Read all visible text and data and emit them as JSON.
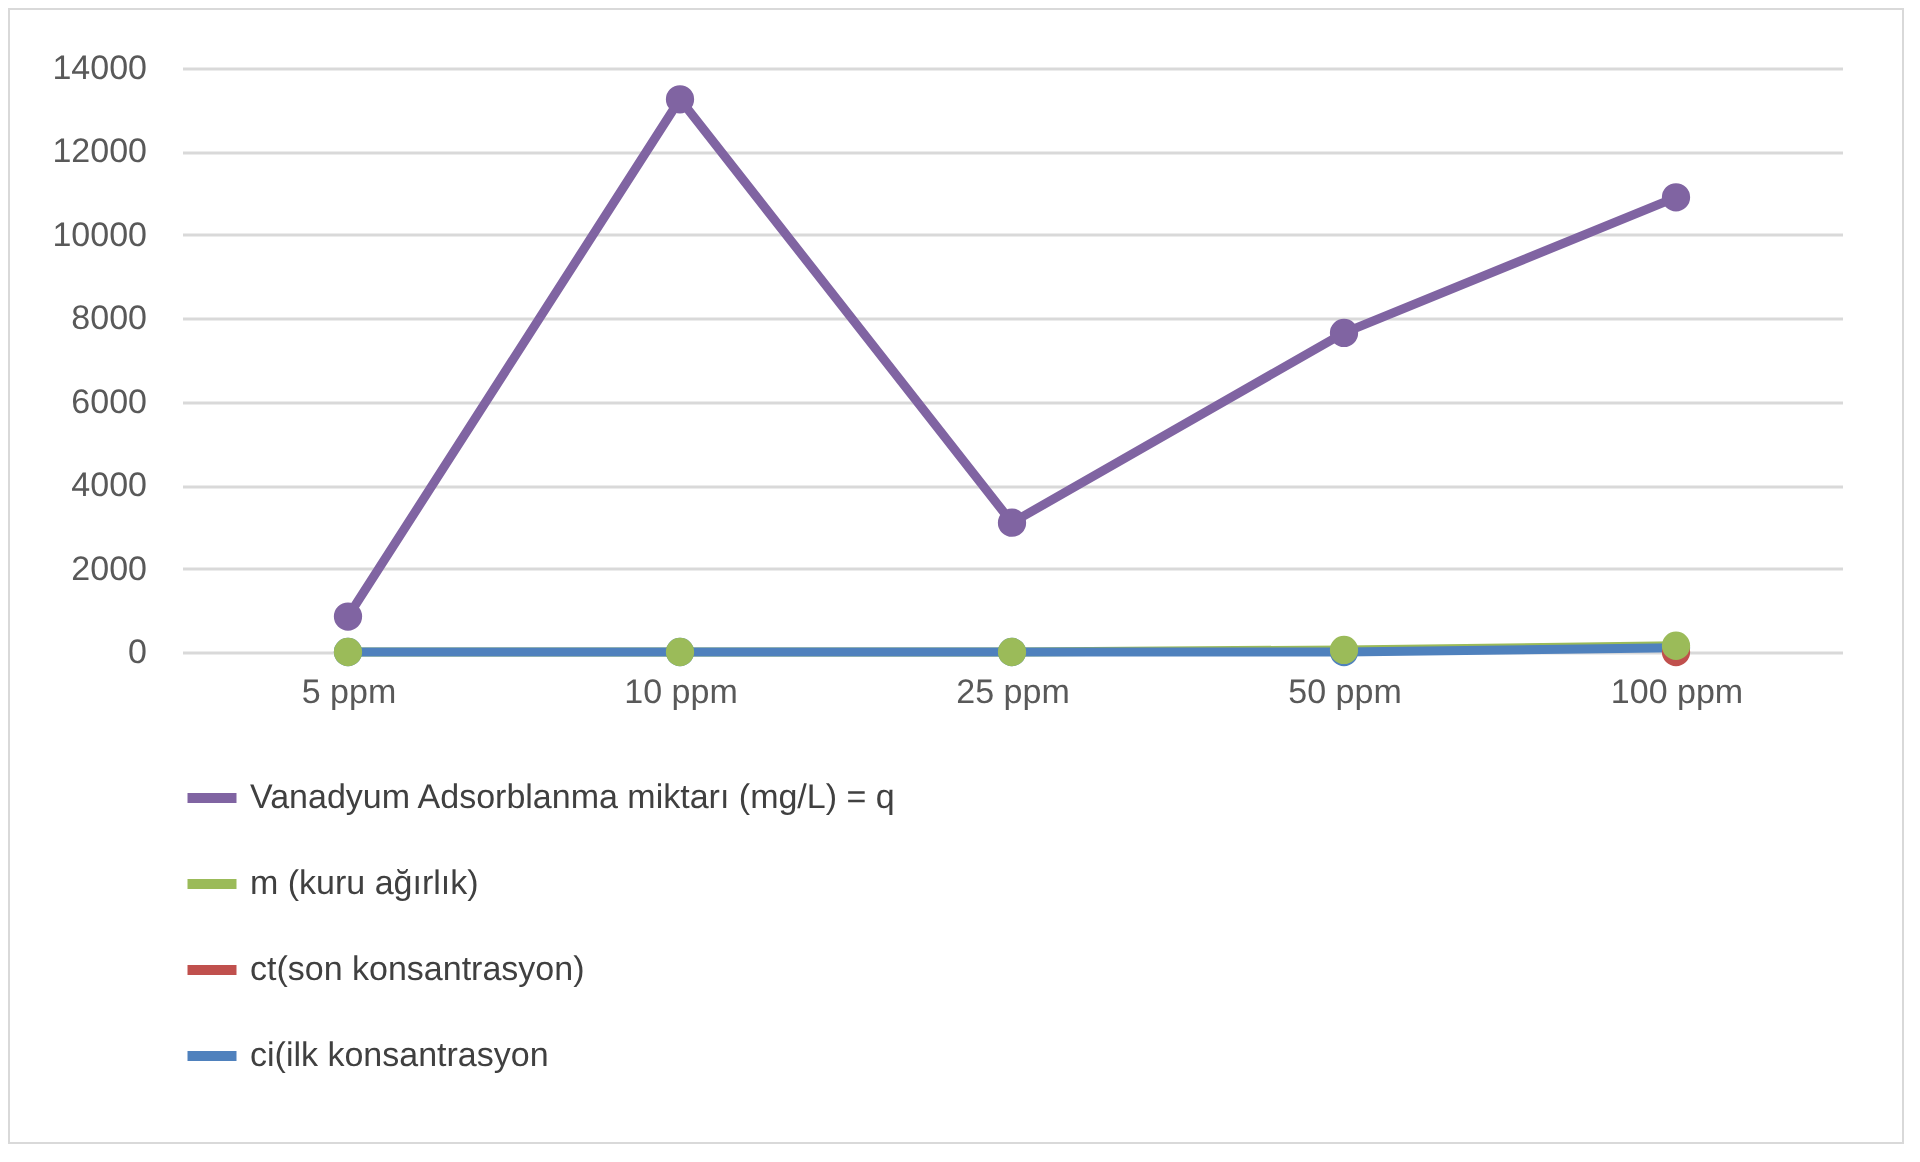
{
  "chart_data": {
    "type": "line",
    "categories": [
      "5 ppm",
      "10 ppm",
      "25 ppm",
      "50 ppm",
      "100 ppm"
    ],
    "series": [
      {
        "name": "Vanadyum Adsorblanma miktarı (mg/L) = q",
        "color": "#8064a2",
        "values": [
          850,
          13250,
          3100,
          7650,
          10900
        ]
      },
      {
        "name": "m (kuru ağırlık)",
        "color": "#9bbb59",
        "values": [
          0,
          0,
          0,
          50,
          150
        ]
      },
      {
        "name": "ct(son konsantrasyon)",
        "color": "#c0504d",
        "values": [
          null,
          null,
          null,
          null,
          0
        ]
      },
      {
        "name": "ci(ilk konsantrasyon",
        "color": "#4f81bd",
        "values": [
          0,
          0,
          0,
          0,
          100
        ]
      }
    ],
    "ylim": [
      0,
      14000
    ],
    "yticks": [
      0,
      2000,
      4000,
      6000,
      8000,
      10000,
      12000,
      14000
    ],
    "grid": "y",
    "legend": "bottom",
    "marker": "circle",
    "line_style": "solid"
  }
}
